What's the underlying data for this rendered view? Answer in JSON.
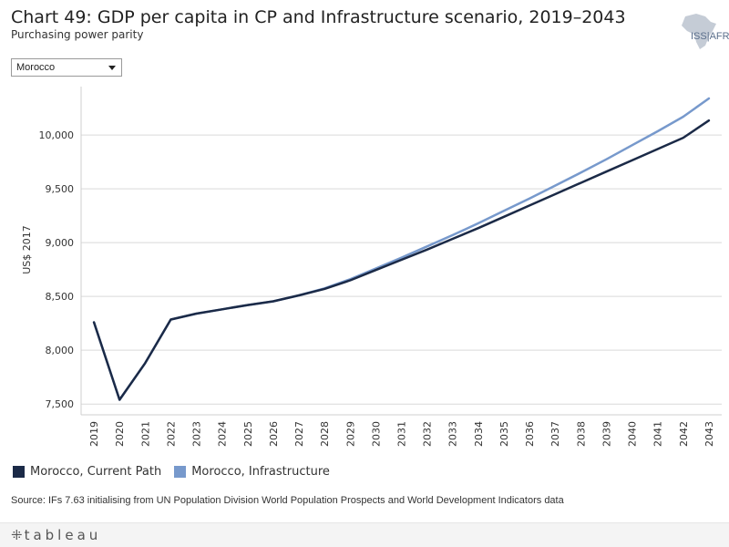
{
  "header": {
    "title": "Chart 49: GDP per capita in CP and Infrastructure scenario, 2019–2043",
    "subtitle": "Purchasing power parity",
    "logo_text": "ISS|AFRICA"
  },
  "filter": {
    "selected": "Morocco"
  },
  "chart_data": {
    "type": "line",
    "title": "Chart 49: GDP per capita in CP and Infrastructure scenario, 2019–2043",
    "subtitle": "Purchasing power parity",
    "xlabel": "",
    "ylabel": "US$ 2017",
    "ylim": [
      7400,
      10450
    ],
    "yticks": [
      7500,
      8000,
      8500,
      9000,
      9500,
      10000
    ],
    "ytick_labels": [
      "7,500",
      "8,000",
      "8,500",
      "9,000",
      "9,500",
      "10,000"
    ],
    "grid": true,
    "x": [
      "2019",
      "2020",
      "2021",
      "2022",
      "2023",
      "2024",
      "2025",
      "2026",
      "2027",
      "2028",
      "2029",
      "2030",
      "2031",
      "2032",
      "2033",
      "2034",
      "2035",
      "2036",
      "2037",
      "2038",
      "2039",
      "2040",
      "2041",
      "2042",
      "2043"
    ],
    "series": [
      {
        "name": "Morocco, Current Path",
        "color": "#1b2a47",
        "values": [
          8260,
          7540,
          7880,
          8285,
          8340,
          8380,
          8420,
          8455,
          8510,
          8570,
          8650,
          8745,
          8840,
          8935,
          9035,
          9135,
          9240,
          9345,
          9450,
          9555,
          9660,
          9765,
          9870,
          9975,
          10135
        ]
      },
      {
        "name": "Morocco, Infrastructure",
        "color": "#7799cc",
        "values": [
          8260,
          7540,
          7880,
          8285,
          8340,
          8380,
          8420,
          8455,
          8510,
          8575,
          8660,
          8760,
          8860,
          8965,
          9070,
          9180,
          9295,
          9410,
          9530,
          9650,
          9775,
          9905,
          10035,
          10170,
          10340
        ]
      }
    ]
  },
  "legend": {
    "items": [
      "Morocco, Current Path",
      "Morocco, Infrastructure"
    ],
    "colors": [
      "#1b2a47",
      "#7799cc"
    ]
  },
  "source": "Source: IFs 7.63 initialising from UN Population Division World Population Prospects and World Development Indicators data",
  "footer": {
    "brand": "tableau",
    "plus_glyph": "⁜"
  }
}
